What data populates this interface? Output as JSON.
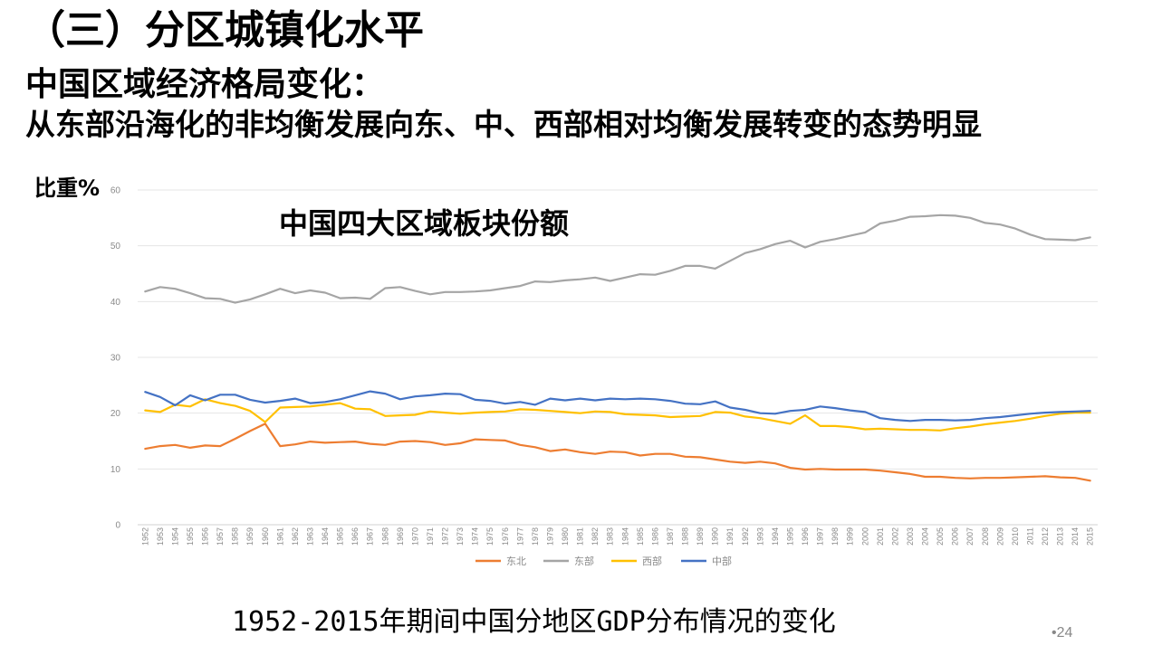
{
  "slide": {
    "section_title": "（三）分区城镇化水平",
    "main_title": "中国区域经济格局变化：",
    "sub_title": "从东部沿海化的非均衡发展向东、中、西部相对均衡发展转变的态势明显",
    "caption": "1952-2015年期间中国分地区GDP分布情况的变化",
    "page_number": "•24"
  },
  "chart_data": {
    "type": "line",
    "title": "中国四大区域板块份额",
    "ylabel": "比重%",
    "xlabel": "",
    "ylim": [
      0,
      60
    ],
    "yticks": [
      0,
      10,
      20,
      30,
      40,
      50,
      60
    ],
    "grid": true,
    "legend_position": "bottom",
    "x": [
      "1952",
      "1953",
      "1954",
      "1955",
      "1956",
      "1957",
      "1958",
      "1959",
      "1960",
      "1961",
      "1962",
      "1963",
      "1964",
      "1965",
      "1966",
      "1967",
      "1968",
      "1969",
      "1970",
      "1971",
      "1972",
      "1973",
      "1974",
      "1975",
      "1976",
      "1977",
      "1978",
      "1979",
      "1980",
      "1981",
      "1982",
      "1983",
      "1984",
      "1985",
      "1986",
      "1987",
      "1988",
      "1989",
      "1990",
      "1991",
      "1992",
      "1993",
      "1994",
      "1995",
      "1996",
      "1997",
      "1998",
      "1999",
      "2000",
      "2001",
      "2002",
      "2003",
      "2004",
      "2005",
      "2006",
      "2007",
      "2008",
      "2009",
      "2010",
      "2011",
      "2012",
      "2013",
      "2014",
      "2015"
    ],
    "series": [
      {
        "name": "东北",
        "color": "#ED7D31",
        "values": [
          13.6,
          14.1,
          14.3,
          13.8,
          14.2,
          14.1,
          15.4,
          16.8,
          18.1,
          14.1,
          14.4,
          14.9,
          14.7,
          14.8,
          14.9,
          14.5,
          14.3,
          14.9,
          15.0,
          14.8,
          14.3,
          14.6,
          15.3,
          15.2,
          15.1,
          14.3,
          13.9,
          13.2,
          13.5,
          13.0,
          12.7,
          13.1,
          13.0,
          12.4,
          12.7,
          12.7,
          12.2,
          12.1,
          11.7,
          11.3,
          11.1,
          11.3,
          11.0,
          10.2,
          9.9,
          10.0,
          9.9,
          9.9,
          9.9,
          9.7,
          9.4,
          9.1,
          8.6,
          8.6,
          8.4,
          8.3,
          8.4,
          8.4,
          8.5,
          8.6,
          8.7,
          8.5,
          8.4,
          7.9
        ]
      },
      {
        "name": "东部",
        "color": "#A5A5A5",
        "values": [
          41.8,
          42.6,
          42.3,
          41.5,
          40.6,
          40.5,
          39.8,
          40.4,
          41.3,
          42.3,
          41.5,
          42.0,
          41.6,
          40.6,
          40.7,
          40.5,
          42.4,
          42.6,
          41.9,
          41.3,
          41.7,
          41.7,
          41.8,
          42.0,
          42.4,
          42.8,
          43.6,
          43.5,
          43.8,
          44.0,
          44.3,
          43.7,
          44.3,
          44.9,
          44.8,
          45.5,
          46.4,
          46.4,
          45.9,
          47.3,
          48.7,
          49.4,
          50.3,
          50.9,
          49.7,
          50.7,
          51.2,
          51.8,
          52.4,
          54.0,
          54.5,
          55.2,
          55.3,
          55.5,
          55.4,
          55.0,
          54.1,
          53.8,
          53.1,
          52.0,
          51.2,
          51.1,
          51.0,
          51.5
        ]
      },
      {
        "name": "西部",
        "color": "#FFC000",
        "values": [
          20.5,
          20.2,
          21.5,
          21.2,
          22.5,
          21.8,
          21.3,
          20.4,
          18.4,
          21.0,
          21.1,
          21.2,
          21.5,
          21.8,
          20.8,
          20.7,
          19.5,
          19.6,
          19.7,
          20.3,
          20.1,
          19.9,
          20.1,
          20.2,
          20.3,
          20.7,
          20.6,
          20.4,
          20.2,
          20.0,
          20.3,
          20.2,
          19.8,
          19.7,
          19.6,
          19.3,
          19.4,
          19.5,
          20.2,
          20.1,
          19.4,
          19.1,
          18.6,
          18.1,
          19.6,
          17.7,
          17.7,
          17.5,
          17.1,
          17.2,
          17.1,
          17.0,
          17.0,
          16.9,
          17.3,
          17.6,
          18.0,
          18.3,
          18.6,
          19.0,
          19.5,
          19.9,
          20.1,
          20.1
        ]
      },
      {
        "name": "中部",
        "color": "#4472C4",
        "values": [
          23.8,
          22.9,
          21.4,
          23.2,
          22.3,
          23.3,
          23.3,
          22.4,
          21.9,
          22.2,
          22.6,
          21.8,
          22.0,
          22.5,
          23.2,
          23.9,
          23.5,
          22.5,
          23.0,
          23.2,
          23.5,
          23.4,
          22.4,
          22.2,
          21.7,
          22.0,
          21.5,
          22.6,
          22.3,
          22.6,
          22.3,
          22.6,
          22.5,
          22.6,
          22.5,
          22.2,
          21.7,
          21.6,
          22.1,
          21.0,
          20.6,
          20.0,
          19.9,
          20.4,
          20.6,
          21.2,
          20.9,
          20.5,
          20.2,
          19.1,
          18.8,
          18.6,
          18.8,
          18.8,
          18.7,
          18.8,
          19.1,
          19.3,
          19.6,
          19.9,
          20.1,
          20.2,
          20.3,
          20.4
        ]
      }
    ]
  }
}
